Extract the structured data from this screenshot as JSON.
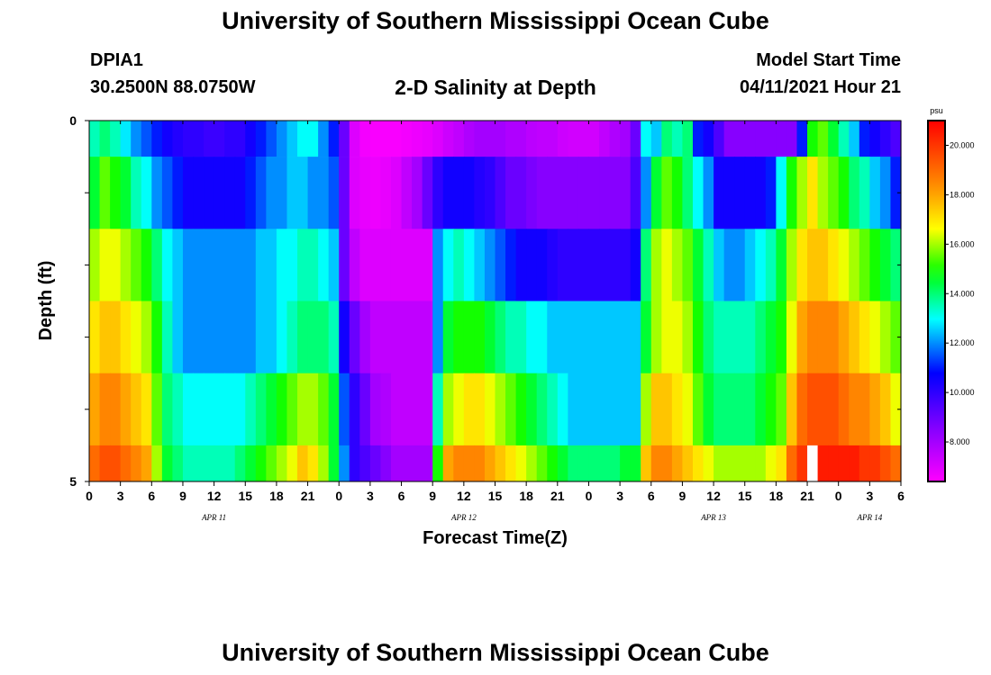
{
  "page": {
    "title_top": "University of Southern Mississippi Ocean Cube",
    "title_bottom": "University of Southern Mississippi Ocean Cube",
    "station": "DPIA1",
    "location": "30.2500N  88.0750W",
    "plot_title": "2-D Salinity at Depth",
    "model_label": "Model Start Time",
    "model_time": "04/11/2021 Hour 21"
  },
  "chart_data": {
    "type": "heatmap",
    "title": "2-D Salinity at Depth",
    "xlabel": "Forecast Time(Z)",
    "ylabel": "Depth (ft)",
    "x_tick_labels": [
      "0",
      "3",
      "6",
      "9",
      "12",
      "15",
      "18",
      "21",
      "0",
      "3",
      "6",
      "9",
      "12",
      "15",
      "18",
      "21",
      "0",
      "3",
      "6",
      "9",
      "12",
      "15",
      "18",
      "21",
      "0",
      "3",
      "6"
    ],
    "x_hours": [
      0,
      3,
      6,
      9,
      12,
      15,
      18,
      21,
      24,
      27,
      30,
      33,
      36,
      39,
      42,
      45,
      48,
      51,
      54,
      57,
      60,
      63,
      66,
      69,
      72,
      75,
      78
    ],
    "xlim": [
      0,
      78
    ],
    "day_labels": [
      {
        "text": "APR 11",
        "hour": 12
      },
      {
        "text": "APR 12",
        "hour": 36
      },
      {
        "text": "APR 13",
        "hour": 60
      },
      {
        "text": "APR 14",
        "hour": 75
      }
    ],
    "y_tick_labels": [
      "0",
      "5"
    ],
    "ylim": [
      0,
      5
    ],
    "depth_rows": [
      0.5,
      1.5,
      2.5,
      3.5,
      4.5,
      5.0
    ],
    "colorbar": {
      "unit": "psu",
      "min": 6.4,
      "max": 21.0,
      "ticks": [
        8.0,
        10.0,
        12.0,
        14.0,
        16.0,
        18.0,
        20.0
      ],
      "tick_labels": [
        "8.000",
        "10.000",
        "12.000",
        "14.000",
        "16.000",
        "18.000",
        "20.000"
      ]
    },
    "missing": [
      {
        "row": 5,
        "hour": 69
      }
    ],
    "columns_hours": [
      0,
      1,
      2,
      3,
      4,
      5,
      6,
      7,
      8,
      9,
      10,
      11,
      12,
      13,
      14,
      15,
      16,
      17,
      18,
      19,
      20,
      21,
      22,
      23,
      24,
      25,
      26,
      27,
      28,
      29,
      30,
      31,
      32,
      33,
      34,
      35,
      36,
      37,
      38,
      39,
      40,
      41,
      42,
      43,
      44,
      45,
      46,
      47,
      48,
      49,
      50,
      51,
      52,
      53,
      54,
      55,
      56,
      57,
      58,
      59,
      60,
      61,
      62,
      63,
      64,
      65,
      66,
      67,
      68,
      69,
      70,
      71,
      72,
      73,
      74,
      75,
      76,
      77
    ],
    "values": [
      [
        13.5,
        14.0,
        13.5,
        12.8,
        12.0,
        11.5,
        11.0,
        10.5,
        10.2,
        10.0,
        10.0,
        9.8,
        9.8,
        10.0,
        10.0,
        10.5,
        11.0,
        11.5,
        12.0,
        12.5,
        13.0,
        13.0,
        12.0,
        11.0,
        9.0,
        7.0,
        6.6,
        6.5,
        6.5,
        6.5,
        6.6,
        6.7,
        6.8,
        7.0,
        7.3,
        7.5,
        7.8,
        8.0,
        8.0,
        8.0,
        7.8,
        7.8,
        7.6,
        7.5,
        7.5,
        7.3,
        7.2,
        7.2,
        7.2,
        7.5,
        7.8,
        8.0,
        9.0,
        13.0,
        12.5,
        14.0,
        13.5,
        14.0,
        11.0,
        10.5,
        9.5,
        8.5,
        8.5,
        8.5,
        8.5,
        8.5,
        8.5,
        8.5,
        11.0,
        15.0,
        15.5,
        14.5,
        13.5,
        12.5,
        11.0,
        10.5,
        10.0,
        9.5
      ],
      [
        14.5,
        15.5,
        15.0,
        14.5,
        13.5,
        13.0,
        12.0,
        11.5,
        11.0,
        10.5,
        10.5,
        10.5,
        10.5,
        10.5,
        10.5,
        11.0,
        11.5,
        12.0,
        12.0,
        12.5,
        12.5,
        12.0,
        12.0,
        11.5,
        9.0,
        7.0,
        6.8,
        6.7,
        6.8,
        7.0,
        7.5,
        8.0,
        9.0,
        10.0,
        10.5,
        10.5,
        10.5,
        10.2,
        10.0,
        9.5,
        9.0,
        9.0,
        8.7,
        8.5,
        8.5,
        8.5,
        8.5,
        8.5,
        8.5,
        8.5,
        8.5,
        8.5,
        9.5,
        12.0,
        14.5,
        15.5,
        15.0,
        14.0,
        13.0,
        12.0,
        10.5,
        10.5,
        10.5,
        10.5,
        10.5,
        11.0,
        13.0,
        15.0,
        16.0,
        17.0,
        16.0,
        15.5,
        15.0,
        14.0,
        13.5,
        12.5,
        12.0,
        11.0
      ],
      [
        16.0,
        16.5,
        16.5,
        16.0,
        15.5,
        15.0,
        14.0,
        13.0,
        12.5,
        12.0,
        12.0,
        12.0,
        12.0,
        12.0,
        12.0,
        12.0,
        12.5,
        12.5,
        13.0,
        13.0,
        13.5,
        13.5,
        13.0,
        12.5,
        9.0,
        7.5,
        7.0,
        7.0,
        7.0,
        7.0,
        7.0,
        7.0,
        7.0,
        12.0,
        13.0,
        13.5,
        13.0,
        12.5,
        12.0,
        11.5,
        11.0,
        10.5,
        10.5,
        10.5,
        10.2,
        10.0,
        10.0,
        10.0,
        10.0,
        10.0,
        10.0,
        10.0,
        10.5,
        14.0,
        16.0,
        16.5,
        16.0,
        15.5,
        14.5,
        13.5,
        12.5,
        12.0,
        12.0,
        12.5,
        13.0,
        13.5,
        14.5,
        16.0,
        17.0,
        17.5,
        17.5,
        17.0,
        16.5,
        16.0,
        15.5,
        15.0,
        14.5,
        14.0
      ],
      [
        17.0,
        17.5,
        17.5,
        17.0,
        16.5,
        16.0,
        15.0,
        13.5,
        12.5,
        12.0,
        12.0,
        12.0,
        12.0,
        12.0,
        12.0,
        12.0,
        12.5,
        12.5,
        13.0,
        13.5,
        14.0,
        14.0,
        14.0,
        13.5,
        10.5,
        9.0,
        8.0,
        7.5,
        7.5,
        7.5,
        7.5,
        7.5,
        7.5,
        12.0,
        14.5,
        15.0,
        15.0,
        15.0,
        14.5,
        14.0,
        13.5,
        13.5,
        13.0,
        13.0,
        12.5,
        12.5,
        12.5,
        12.5,
        12.5,
        12.5,
        12.5,
        12.5,
        12.5,
        14.5,
        16.0,
        16.5,
        16.5,
        16.0,
        15.0,
        14.0,
        13.5,
        13.5,
        13.5,
        13.5,
        14.0,
        14.5,
        15.0,
        16.5,
        18.0,
        18.5,
        18.5,
        18.5,
        18.0,
        17.5,
        17.0,
        16.5,
        16.0,
        15.5
      ],
      [
        18.0,
        18.5,
        18.5,
        18.0,
        17.5,
        17.0,
        15.5,
        14.0,
        13.5,
        13.0,
        13.0,
        13.0,
        13.0,
        13.0,
        13.0,
        13.5,
        14.0,
        14.5,
        15.0,
        15.5,
        16.0,
        16.0,
        15.5,
        14.5,
        11.5,
        10.0,
        9.0,
        8.0,
        7.8,
        7.5,
        7.5,
        7.5,
        7.5,
        13.5,
        16.0,
        16.5,
        17.0,
        17.0,
        16.5,
        16.0,
        15.5,
        15.0,
        14.5,
        14.0,
        13.5,
        13.0,
        12.5,
        12.5,
        12.5,
        12.5,
        12.5,
        12.5,
        12.5,
        16.0,
        17.5,
        17.5,
        17.0,
        16.5,
        15.5,
        14.5,
        14.0,
        14.0,
        14.0,
        14.0,
        14.5,
        15.0,
        15.5,
        17.5,
        19.0,
        19.5,
        19.5,
        19.5,
        19.0,
        18.5,
        18.5,
        18.0,
        17.5,
        16.5
      ],
      [
        19.0,
        19.5,
        19.5,
        19.0,
        18.5,
        18.0,
        16.0,
        14.5,
        14.0,
        13.5,
        13.5,
        13.5,
        13.5,
        13.5,
        14.0,
        14.5,
        15.0,
        15.5,
        16.0,
        16.5,
        17.5,
        17.0,
        16.0,
        14.5,
        12.0,
        10.0,
        9.5,
        9.0,
        8.5,
        8.0,
        8.0,
        8.0,
        8.0,
        15.0,
        18.0,
        18.5,
        18.5,
        18.5,
        18.0,
        17.5,
        17.0,
        16.5,
        16.0,
        15.5,
        15.0,
        14.5,
        14.0,
        14.0,
        14.0,
        14.0,
        14.0,
        14.5,
        14.5,
        17.5,
        18.5,
        18.5,
        18.0,
        17.5,
        17.0,
        16.5,
        16.0,
        16.0,
        16.0,
        16.0,
        16.0,
        16.5,
        17.0,
        19.0,
        20.0,
        null,
        20.5,
        20.5,
        20.5,
        20.5,
        20.0,
        20.0,
        19.5,
        19.0
      ]
    ]
  }
}
